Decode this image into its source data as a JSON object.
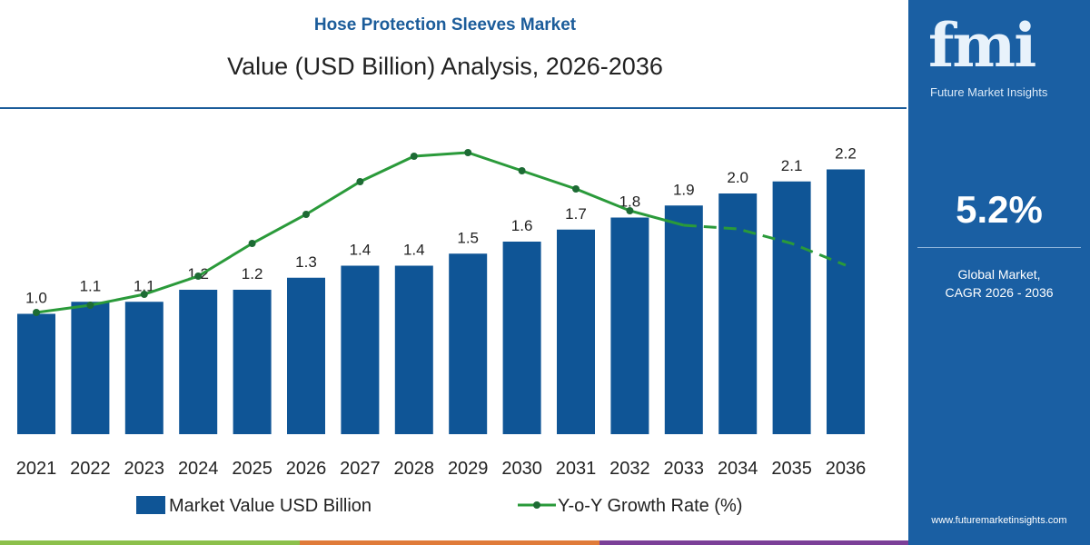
{
  "header": {
    "title": "Hose Protection Sleeves Market",
    "subtitle": "Value (USD Billion) Analysis, 2026-2036"
  },
  "side": {
    "logo": "fmi",
    "logo_sub": "Future Market Insights",
    "cagr": "5.2%",
    "cagr_label_1": "Global Market,",
    "cagr_label_2": "CAGR 2026 - 2036",
    "url": "www.futuremarketinsights.com"
  },
  "colors": {
    "bar": "#0f5596",
    "line": "#2a9a3a",
    "panel": "#1a5fa3",
    "title": "#1b5c9a"
  },
  "chart_data": {
    "type": "bar",
    "title": "Value (USD Billion) Analysis, 2026-2036",
    "categories": [
      "2021",
      "2022",
      "2023",
      "2024",
      "2025",
      "2026",
      "2027",
      "2028",
      "2029",
      "2030",
      "2031",
      "2032",
      "2033",
      "2034",
      "2035",
      "2036"
    ],
    "series": [
      {
        "name": "Market Value USD Billion",
        "type": "bar",
        "values": [
          1.0,
          1.1,
          1.1,
          1.2,
          1.2,
          1.3,
          1.4,
          1.4,
          1.5,
          1.6,
          1.7,
          1.8,
          1.9,
          2.0,
          2.1,
          2.2
        ],
        "labels": [
          "1.0",
          "1.1",
          "1.1",
          "1.2",
          "1.2",
          "1.3",
          "1.4",
          "1.4",
          "1.5",
          "1.6",
          "1.7",
          "1.8",
          "1.9",
          "2.0",
          "2.1",
          "2.2"
        ]
      },
      {
        "name": "Y-o-Y Growth Rate (%)",
        "type": "line",
        "values": [
          3.4,
          3.6,
          3.9,
          4.4,
          5.3,
          6.1,
          7.0,
          7.7,
          7.8,
          7.3,
          6.8,
          6.2,
          5.8,
          5.7,
          5.3,
          4.7
        ],
        "dashed_from": "2033"
      }
    ],
    "legend": "bottom",
    "grid": false
  }
}
